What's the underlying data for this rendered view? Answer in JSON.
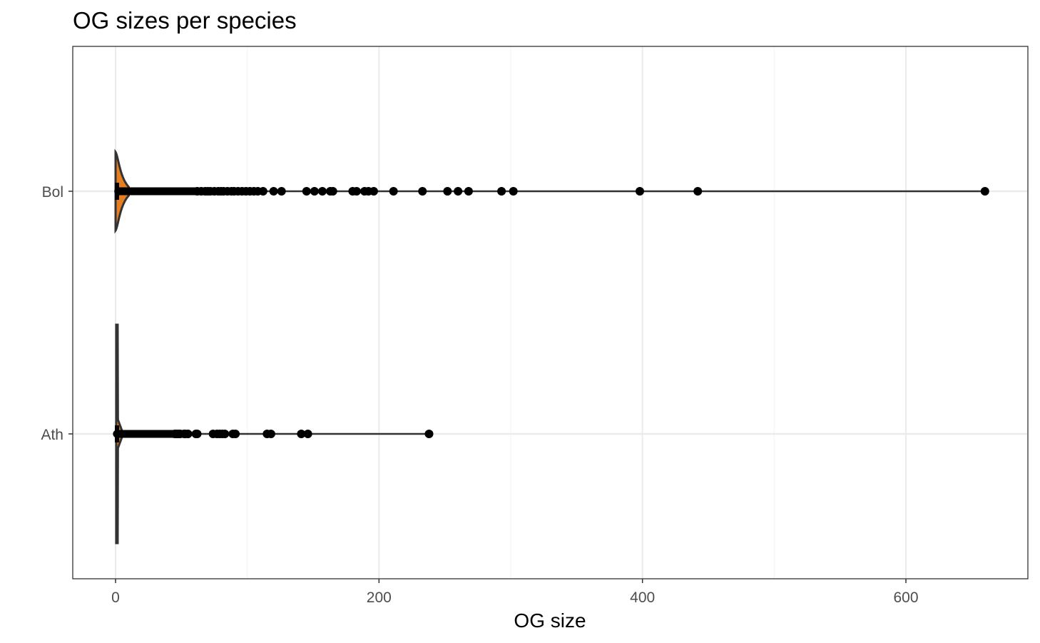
{
  "chart_data": {
    "type": "violin",
    "title": "OG sizes per species",
    "xlabel": "OG size",
    "ylabel": "",
    "xlim": [
      -32,
      692
    ],
    "x_ticks": [
      0,
      200,
      400,
      600
    ],
    "x_tick_labels": [
      "0",
      "200",
      "400",
      "600"
    ],
    "grid": true,
    "categories": [
      "Ath",
      "Bol"
    ],
    "series": [
      {
        "category": "Ath",
        "fill_color": "#e67e22",
        "whisker_max": 238,
        "points": [
          45,
          46,
          47,
          48,
          49,
          52,
          53,
          55,
          61,
          62,
          74,
          77,
          79,
          81,
          83,
          89,
          91,
          115,
          118,
          141,
          146,
          238
        ]
      },
      {
        "category": "Bol",
        "fill_color": "#e67e22",
        "whisker_max": 660,
        "points": [
          62,
          65,
          68,
          70,
          72,
          75,
          78,
          80,
          82,
          85,
          88,
          90,
          93,
          96,
          99,
          102,
          105,
          108,
          112,
          120,
          126,
          145,
          151,
          157,
          163,
          165,
          180,
          183,
          189,
          192,
          196,
          211,
          233,
          252,
          260,
          268,
          293,
          302,
          398,
          442,
          660
        ]
      }
    ]
  },
  "colors": {
    "panel_border": "#333333",
    "grid_major": "#ebebeb",
    "grid_minor": "#f5f5f5",
    "points": "#000000",
    "violin_outline": "#333333"
  }
}
